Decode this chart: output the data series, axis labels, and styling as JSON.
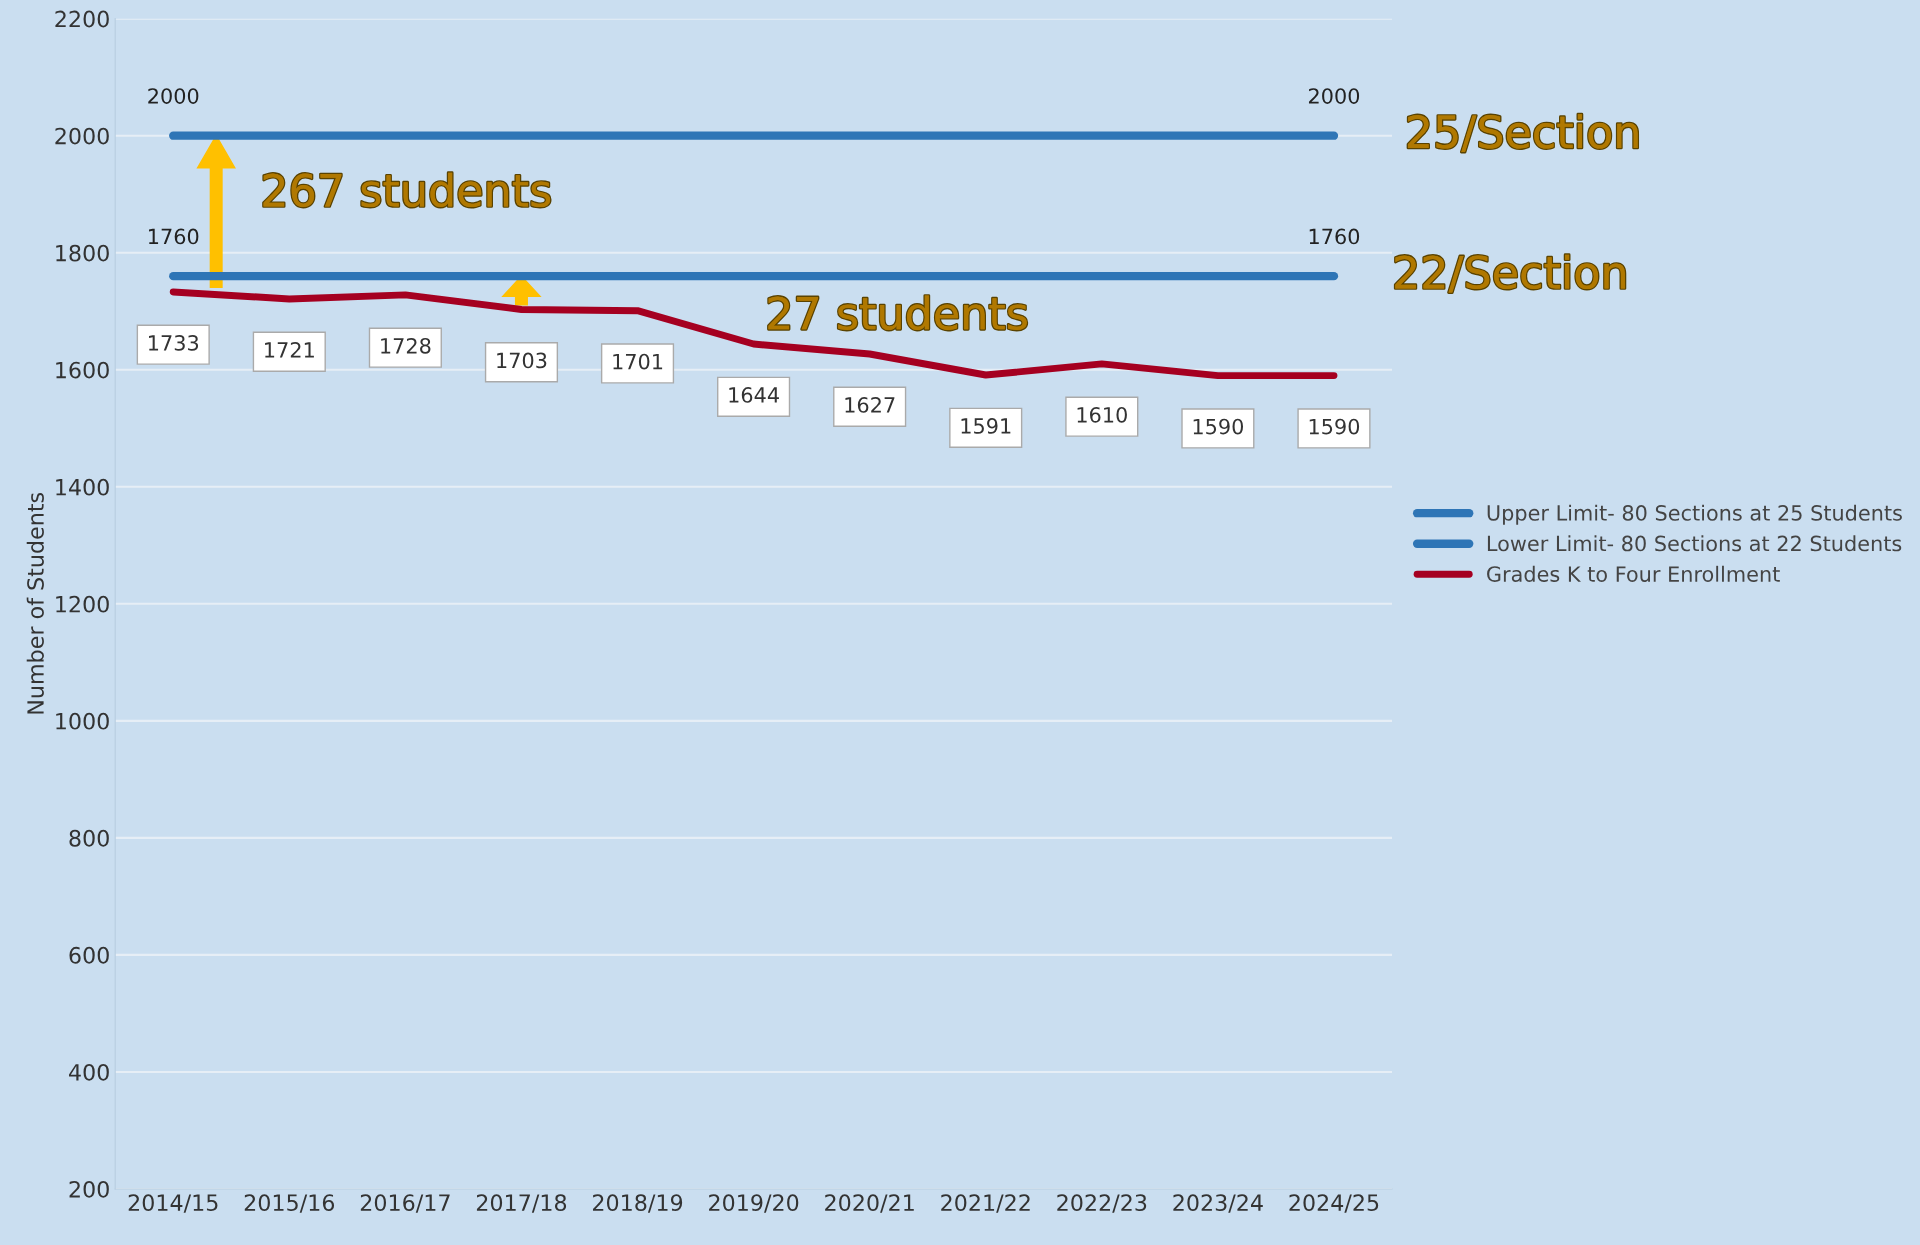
{
  "chart_data": {
    "type": "line",
    "ylabel": "Number of Students",
    "categories": [
      "2014/15",
      "2015/16",
      "2016/17",
      "2017/18",
      "2018/19",
      "2019/20",
      "2020/21",
      "2021/22",
      "2022/23",
      "2023/24",
      "2024/25"
    ],
    "series": [
      {
        "name": "Upper Limit- 80 Sections at 25 Students",
        "color": "#2e75b6",
        "values": [
          2000,
          2000,
          2000,
          2000,
          2000,
          2000,
          2000,
          2000,
          2000,
          2000,
          2000
        ],
        "value_labels": [
          "2000",
          null,
          null,
          null,
          null,
          null,
          null,
          null,
          null,
          null,
          "2000"
        ]
      },
      {
        "name": "Lower Limit- 80 Sections at 22 Students",
        "color": "#2e75b6",
        "values": [
          1760,
          1760,
          1760,
          1760,
          1760,
          1760,
          1760,
          1760,
          1760,
          1760,
          1760
        ],
        "value_labels": [
          "1760",
          null,
          null,
          null,
          null,
          null,
          null,
          null,
          null,
          null,
          "1760"
        ]
      },
      {
        "name": "Grades K to Four Enrollment",
        "color": "#a50021",
        "values": [
          1733,
          1721,
          1728,
          1703,
          1701,
          1644,
          1627,
          1591,
          1610,
          1590,
          1590
        ],
        "value_labels": [
          "1733",
          "1721",
          "1728",
          "1703",
          "1701",
          "1644",
          "1627",
          "1591",
          "1610",
          "1590",
          "1590"
        ]
      }
    ],
    "ylim": [
      200,
      2200
    ],
    "yticks": [
      200,
      400,
      600,
      800,
      1000,
      1200,
      1400,
      1600,
      1800,
      2000,
      2200
    ],
    "grid": "y",
    "legend": "right",
    "marker": "none",
    "line_style": "solid",
    "annotations": [
      "25/Section",
      "22/Section",
      {
        "text": "267 students",
        "x": "2014/15",
        "y": 2000
      },
      "27 students"
    ]
  }
}
